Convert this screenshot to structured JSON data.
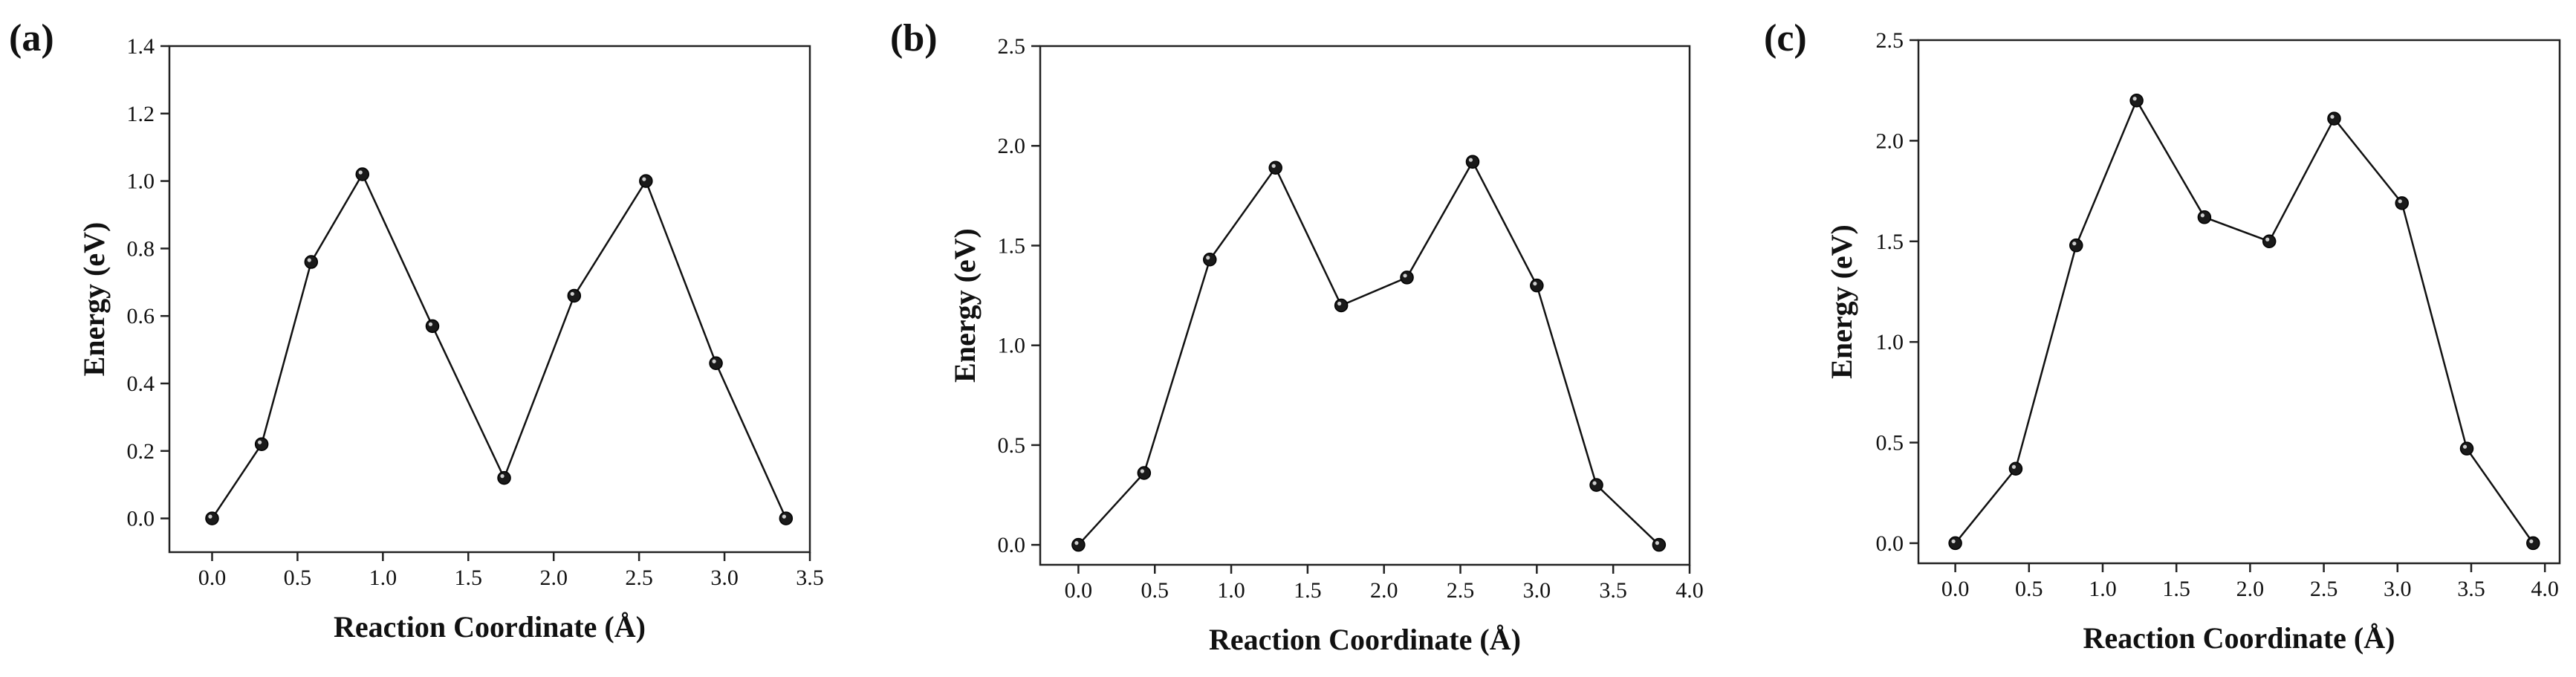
{
  "chart_data": [
    {
      "type": "line",
      "panel_label": "(a)",
      "xlabel": "Reaction Coordinate (Å)",
      "ylabel": "Energy (eV)",
      "xlim": [
        -0.25,
        3.5
      ],
      "ylim": [
        -0.1,
        1.4
      ],
      "xticks": [
        "0.0",
        "0.5",
        "1.0",
        "1.5",
        "2.0",
        "2.5",
        "3.0",
        "3.5"
      ],
      "yticks": [
        "0.0",
        "0.2",
        "0.4",
        "0.6",
        "0.8",
        "1.0",
        "1.2",
        "1.4"
      ],
      "grid": false,
      "series": [
        {
          "x": [
            0.0,
            0.29,
            0.58,
            0.88,
            1.29,
            1.71,
            2.12,
            2.54,
            2.95,
            3.36
          ],
          "y": [
            0.0,
            0.22,
            0.76,
            1.02,
            0.57,
            0.12,
            0.66,
            1.0,
            0.46,
            0.0
          ]
        }
      ]
    },
    {
      "type": "line",
      "panel_label": "(b)",
      "xlabel": "Reaction Coordinate (Å)",
      "ylabel": "Energy (eV)",
      "xlim": [
        -0.25,
        4.0
      ],
      "ylim": [
        -0.1,
        2.5
      ],
      "xticks": [
        "0.0",
        "0.5",
        "1.0",
        "1.5",
        "2.0",
        "2.5",
        "3.0",
        "3.5",
        "4.0"
      ],
      "yticks": [
        "0.0",
        "0.5",
        "1.0",
        "1.5",
        "2.0",
        "2.5"
      ],
      "grid": false,
      "series": [
        {
          "x": [
            0.0,
            0.43,
            0.86,
            1.29,
            1.72,
            2.15,
            2.58,
            3.0,
            3.39,
            3.8
          ],
          "y": [
            0.0,
            0.36,
            1.43,
            1.89,
            1.2,
            1.34,
            1.92,
            1.3,
            0.3,
            0.0
          ]
        }
      ]
    },
    {
      "type": "line",
      "panel_label": "(c)",
      "xlabel": "Reaction Coordinate (Å)",
      "ylabel": "Energy (eV)",
      "xlim": [
        -0.25,
        4.1
      ],
      "ylim": [
        -0.1,
        2.5
      ],
      "xticks": [
        "0.0",
        "0.5",
        "1.0",
        "1.5",
        "2.0",
        "2.5",
        "3.0",
        "3.5",
        "4.0"
      ],
      "yticks": [
        "0.0",
        "0.5",
        "1.0",
        "1.5",
        "2.0",
        "2.5"
      ],
      "grid": false,
      "series": [
        {
          "x": [
            0.0,
            0.41,
            0.82,
            1.23,
            1.69,
            2.13,
            2.57,
            3.03,
            3.47,
            3.92
          ],
          "y": [
            0.0,
            0.37,
            1.48,
            2.2,
            1.62,
            1.5,
            2.11,
            1.69,
            0.47,
            0.0
          ]
        }
      ]
    }
  ]
}
